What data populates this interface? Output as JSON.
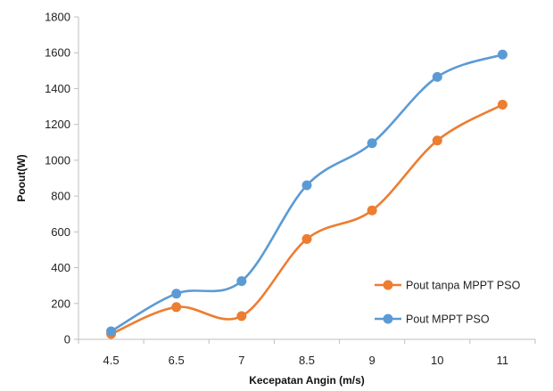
{
  "chart_data": {
    "type": "line",
    "title": "",
    "xlabel": "Kecepatan Angin (m/s)",
    "ylabel": "Poout(W)",
    "categories": [
      "4.5",
      "6.5",
      "7",
      "8.5",
      "9",
      "10",
      "11"
    ],
    "ylim": [
      0,
      1800
    ],
    "yticks": [
      0,
      200,
      400,
      600,
      800,
      1000,
      1200,
      1400,
      1600,
      1800
    ],
    "grid": false,
    "smooth": true,
    "legend_position": "bottom-right",
    "series": [
      {
        "name": "Pout tanpa MPPT PSO",
        "color": "#ED7D31",
        "values": [
          30,
          180,
          130,
          560,
          720,
          1110,
          1310
        ]
      },
      {
        "name": "Pout MPPT PSO",
        "color": "#5B9BD5",
        "values": [
          45,
          255,
          325,
          860,
          1095,
          1465,
          1590
        ]
      }
    ]
  }
}
